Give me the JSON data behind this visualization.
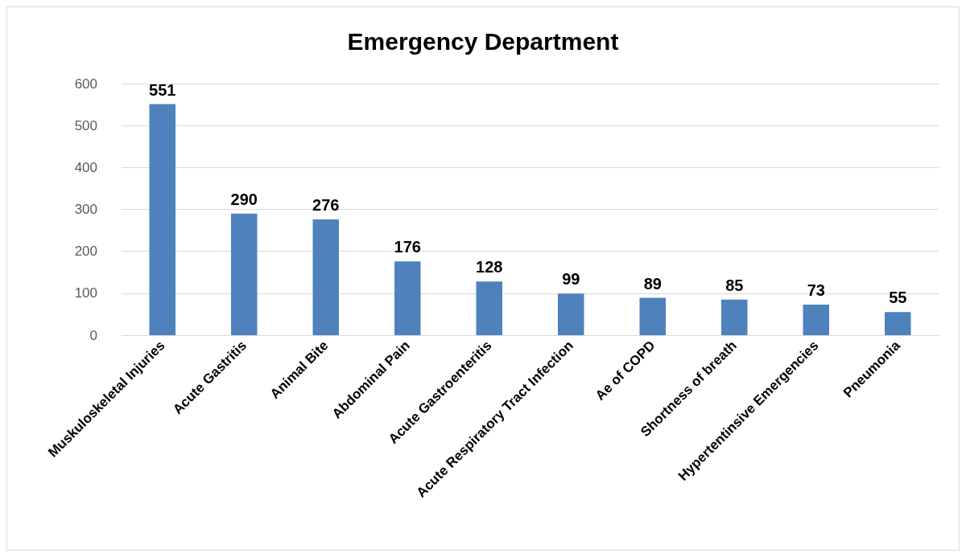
{
  "chart_data": {
    "type": "bar",
    "title": "Emergency Department",
    "categories": [
      "Muskuloskeletal Injuries",
      "Acute Gastritis",
      "Animal Bite",
      "Abdominal Pain",
      "Acute Gastroenteritis",
      "Acute Respiratory Tract Infection",
      "Ae of COPD",
      "Shortness of breath",
      "Hypertentinsive Emergencies",
      "Pneumonia"
    ],
    "values": [
      551,
      290,
      276,
      176,
      128,
      99,
      89,
      85,
      73,
      55
    ],
    "color": "#4f81bd",
    "ylim": [
      0,
      600
    ],
    "yticks": [
      0,
      100,
      200,
      300,
      400,
      500,
      600
    ],
    "grid": "y",
    "data_labels": true
  }
}
